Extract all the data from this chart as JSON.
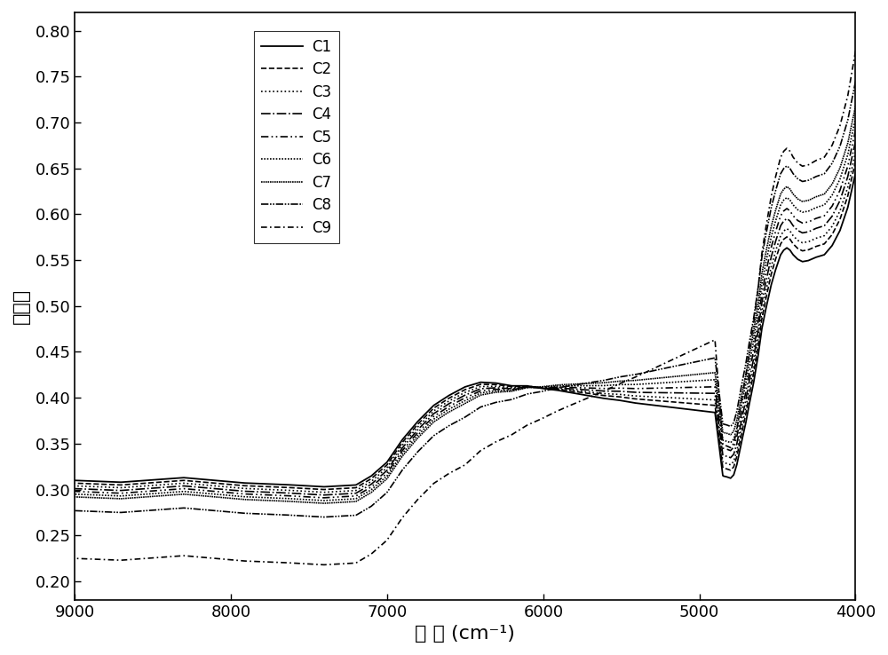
{
  "title": "",
  "xlabel": "波 数 (cm⁻¹)",
  "ylabel": "吸光度",
  "xlim": [
    9000,
    4000
  ],
  "ylim": [
    0.18,
    0.82
  ],
  "yticks": [
    0.2,
    0.25,
    0.3,
    0.35,
    0.4,
    0.45,
    0.5,
    0.55,
    0.6,
    0.65,
    0.7,
    0.75,
    0.8
  ],
  "xticks": [
    9000,
    8000,
    7000,
    6000,
    5000,
    4000
  ],
  "series": [
    "C1",
    "C2",
    "C3",
    "C4",
    "C5",
    "C6",
    "C7",
    "C8",
    "C9"
  ],
  "colors": [
    "black",
    "black",
    "black",
    "black",
    "black",
    "black",
    "black",
    "black",
    "black"
  ],
  "background_color": "#ffffff",
  "left_bases": [
    0.31,
    0.307,
    0.304,
    0.301,
    0.298,
    0.295,
    0.292,
    0.277,
    0.225
  ],
  "right_ends": [
    0.645,
    0.658,
    0.668,
    0.68,
    0.692,
    0.705,
    0.718,
    0.745,
    0.778
  ]
}
